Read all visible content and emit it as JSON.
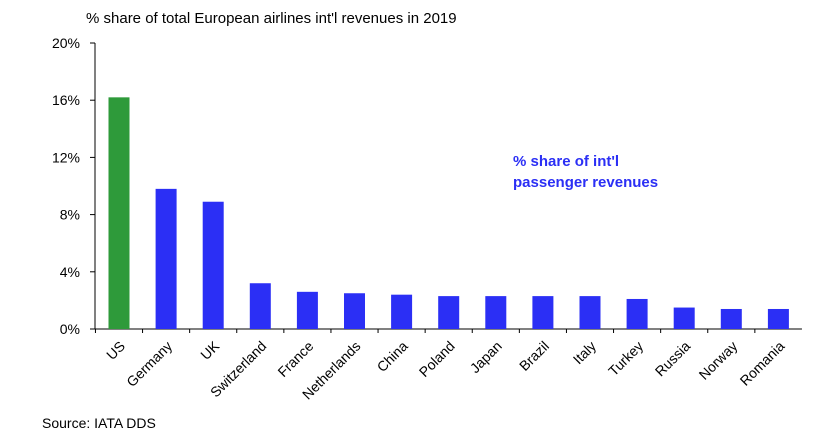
{
  "chart_data": {
    "type": "bar",
    "title": "% share of total European airlines int'l revenues in 2019",
    "xlabel": "",
    "ylabel": "",
    "ylim": [
      0,
      20
    ],
    "yticks": [
      0,
      4,
      8,
      12,
      16,
      20
    ],
    "ytick_labels": [
      "0%",
      "4%",
      "8%",
      "12%",
      "16%",
      "20%"
    ],
    "categories": [
      "US",
      "Germany",
      "UK",
      "Switzerland",
      "France",
      "Netherlands",
      "China",
      "Poland",
      "Japan",
      "Brazil",
      "Italy",
      "Turkey",
      "Russia",
      "Norway",
      "Romania"
    ],
    "series": [
      {
        "values": [
          16.2,
          9.8,
          8.9,
          3.2,
          2.6,
          2.5,
          2.4,
          2.3,
          2.3,
          2.3,
          2.3,
          2.1,
          1.5,
          1.4,
          1.4
        ],
        "colors": [
          "#2e9a3a",
          "#2b2ff5",
          "#2b2ff5",
          "#2b2ff5",
          "#2b2ff5",
          "#2b2ff5",
          "#2b2ff5",
          "#2b2ff5",
          "#2b2ff5",
          "#2b2ff5",
          "#2b2ff5",
          "#2b2ff5",
          "#2b2ff5",
          "#2b2ff5",
          "#2b2ff5"
        ]
      }
    ],
    "annotation": {
      "lines": [
        "% share of int'l",
        "passenger  revenues"
      ],
      "color": "#2b2ff5"
    },
    "grid": false,
    "legend": "none"
  },
  "source": "Source: IATA DDS"
}
